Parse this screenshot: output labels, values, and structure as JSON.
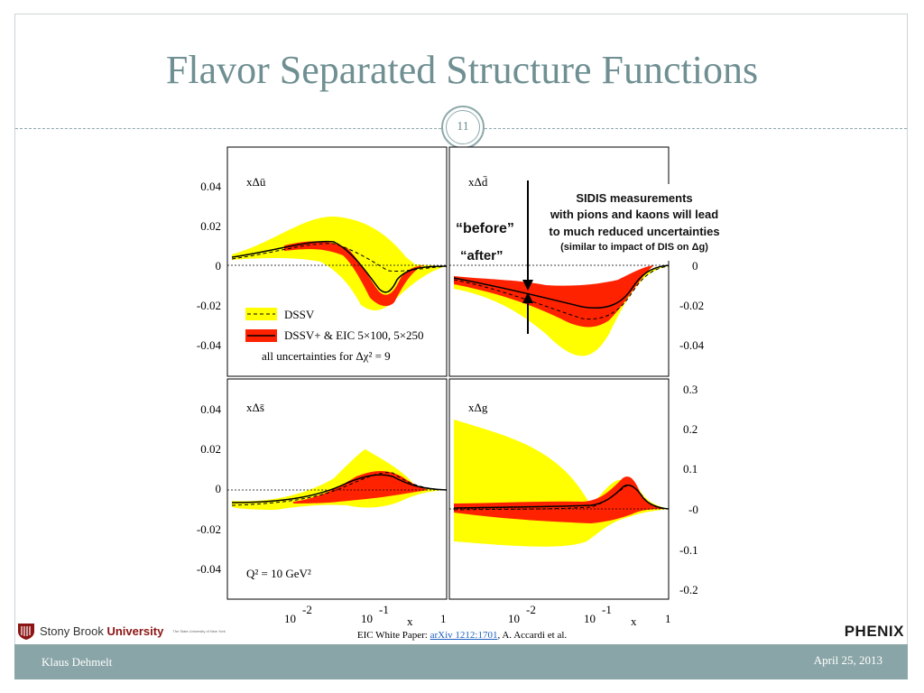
{
  "slide": {
    "title": "Flavor Separated Structure Functions",
    "page_number": "11",
    "footer_left": "Klaus Dehmelt",
    "footer_right": "April 25, 2013",
    "credit_prefix": "EIC White Paper: ",
    "credit_link": "arXiv 1212:1701",
    "credit_suffix": ", A. Accardi et al.",
    "logo_left_name_1": "Stony Brook",
    "logo_left_name_2": "University",
    "logo_left_tagline": "The State University of New York",
    "logo_right": "PHENIX",
    "colors": {
      "title": "#6f8f92",
      "footer_bg": "#8aa5a7",
      "band_yellow": "#ffff00",
      "band_red": "#ff2200"
    }
  },
  "figure": {
    "panel_labels": [
      "xΔū",
      "xΔd̄",
      "xΔs̄",
      "xΔg"
    ],
    "left_ticks": [
      "0.04",
      "0.02",
      "0",
      "-0.02",
      "-0.04"
    ],
    "right_top_ticks": [
      "0",
      "-0.02",
      "-0.04"
    ],
    "right_bottom_ticks": [
      "0.3",
      "0.2",
      "0.1",
      "-0",
      "-0.1",
      "-0.2"
    ],
    "x_ticks": [
      "10",
      "-2",
      "10",
      "-1",
      "1"
    ],
    "x_label": "x",
    "legend": {
      "dssv": "DSSV",
      "dssv_plus": "DSSV+ & EIC 5×100, 5×250",
      "note": "all uncertainties for Δχ² = 9"
    },
    "q2_label": "Q² = 10 GeV²",
    "annotation": {
      "before": "“before”",
      "after": "“after”",
      "line1": "SIDIS measurements",
      "line2": "with pions and kaons will lead",
      "line3": "to much reduced uncertainties",
      "line4": "(similar to impact of DIS on Δg)"
    }
  }
}
